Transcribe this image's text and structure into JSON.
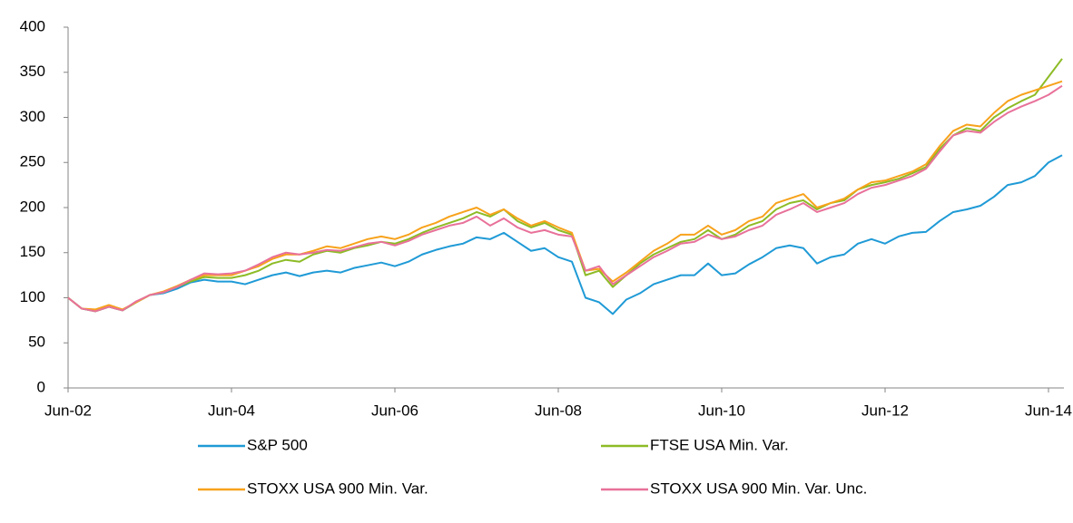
{
  "chart_data": {
    "type": "line",
    "categories": [
      "Jun-02",
      null,
      null,
      null,
      null,
      null,
      null,
      null,
      null,
      null,
      null,
      null,
      "Jun-04",
      null,
      null,
      null,
      null,
      null,
      null,
      null,
      null,
      null,
      null,
      null,
      "Jun-06",
      null,
      null,
      null,
      null,
      null,
      null,
      null,
      null,
      null,
      null,
      null,
      "Jun-08",
      null,
      null,
      null,
      null,
      null,
      null,
      null,
      null,
      null,
      null,
      null,
      "Jun-10",
      null,
      null,
      null,
      null,
      null,
      null,
      null,
      null,
      null,
      null,
      null,
      "Jun-12",
      null,
      null,
      null,
      null,
      null,
      null,
      null,
      null,
      null,
      null,
      null,
      "Jun-14",
      null
    ],
    "series": [
      {
        "name": "S&P 500",
        "color": "#1f9ad6",
        "values": [
          100,
          88,
          85,
          90,
          86,
          95,
          103,
          105,
          110,
          117,
          120,
          118,
          118,
          115,
          120,
          125,
          128,
          124,
          128,
          130,
          128,
          133,
          136,
          139,
          135,
          140,
          148,
          153,
          157,
          160,
          167,
          165,
          172,
          162,
          152,
          155,
          145,
          140,
          100,
          95,
          82,
          98,
          105,
          115,
          120,
          125,
          125,
          138,
          125,
          127,
          137,
          145,
          155,
          158,
          155,
          138,
          145,
          148,
          160,
          165,
          160,
          168,
          172,
          173,
          185,
          195,
          198,
          202,
          212,
          225,
          228,
          235,
          250,
          258
        ]
      },
      {
        "name": "FTSE USA Min. Var.",
        "color": "#8dbb25",
        "values": [
          100,
          88,
          85,
          90,
          86,
          95,
          103,
          106,
          112,
          118,
          123,
          122,
          122,
          125,
          130,
          138,
          142,
          140,
          148,
          152,
          150,
          155,
          158,
          162,
          160,
          165,
          172,
          178,
          183,
          188,
          195,
          190,
          198,
          185,
          178,
          183,
          175,
          170,
          125,
          130,
          112,
          125,
          138,
          148,
          155,
          162,
          165,
          175,
          165,
          170,
          180,
          185,
          198,
          205,
          208,
          198,
          205,
          208,
          220,
          225,
          228,
          232,
          238,
          245,
          265,
          280,
          288,
          285,
          300,
          310,
          318,
          325,
          345,
          365
        ]
      },
      {
        "name": "STOXX USA 900 Min. Var.",
        "color": "#f7a21b",
        "values": [
          100,
          88,
          87,
          92,
          87,
          95,
          103,
          107,
          113,
          120,
          125,
          125,
          125,
          130,
          135,
          143,
          148,
          148,
          152,
          157,
          155,
          160,
          165,
          168,
          165,
          170,
          178,
          183,
          190,
          195,
          200,
          192,
          198,
          188,
          180,
          185,
          178,
          172,
          130,
          132,
          118,
          128,
          140,
          152,
          160,
          170,
          170,
          180,
          170,
          175,
          185,
          190,
          205,
          210,
          215,
          200,
          205,
          210,
          220,
          228,
          230,
          235,
          240,
          248,
          268,
          285,
          292,
          290,
          305,
          318,
          325,
          330,
          335,
          340
        ]
      },
      {
        "name": "STOXX USA 900 Min. Var. Unc.",
        "color": "#e8719a",
        "values": [
          100,
          88,
          85,
          90,
          86,
          96,
          103,
          106,
          112,
          120,
          127,
          126,
          127,
          130,
          137,
          145,
          150,
          148,
          150,
          153,
          152,
          156,
          160,
          162,
          158,
          163,
          170,
          175,
          180,
          183,
          190,
          180,
          188,
          178,
          172,
          175,
          170,
          168,
          130,
          135,
          115,
          125,
          135,
          145,
          152,
          160,
          162,
          170,
          165,
          168,
          175,
          180,
          192,
          198,
          205,
          195,
          200,
          205,
          215,
          222,
          225,
          230,
          235,
          243,
          262,
          280,
          285,
          283,
          295,
          305,
          312,
          318,
          325,
          335
        ]
      }
    ],
    "ylim": [
      0,
      400
    ],
    "yticks": [
      0,
      50,
      100,
      150,
      200,
      250,
      300,
      350,
      400
    ],
    "grid": false
  }
}
